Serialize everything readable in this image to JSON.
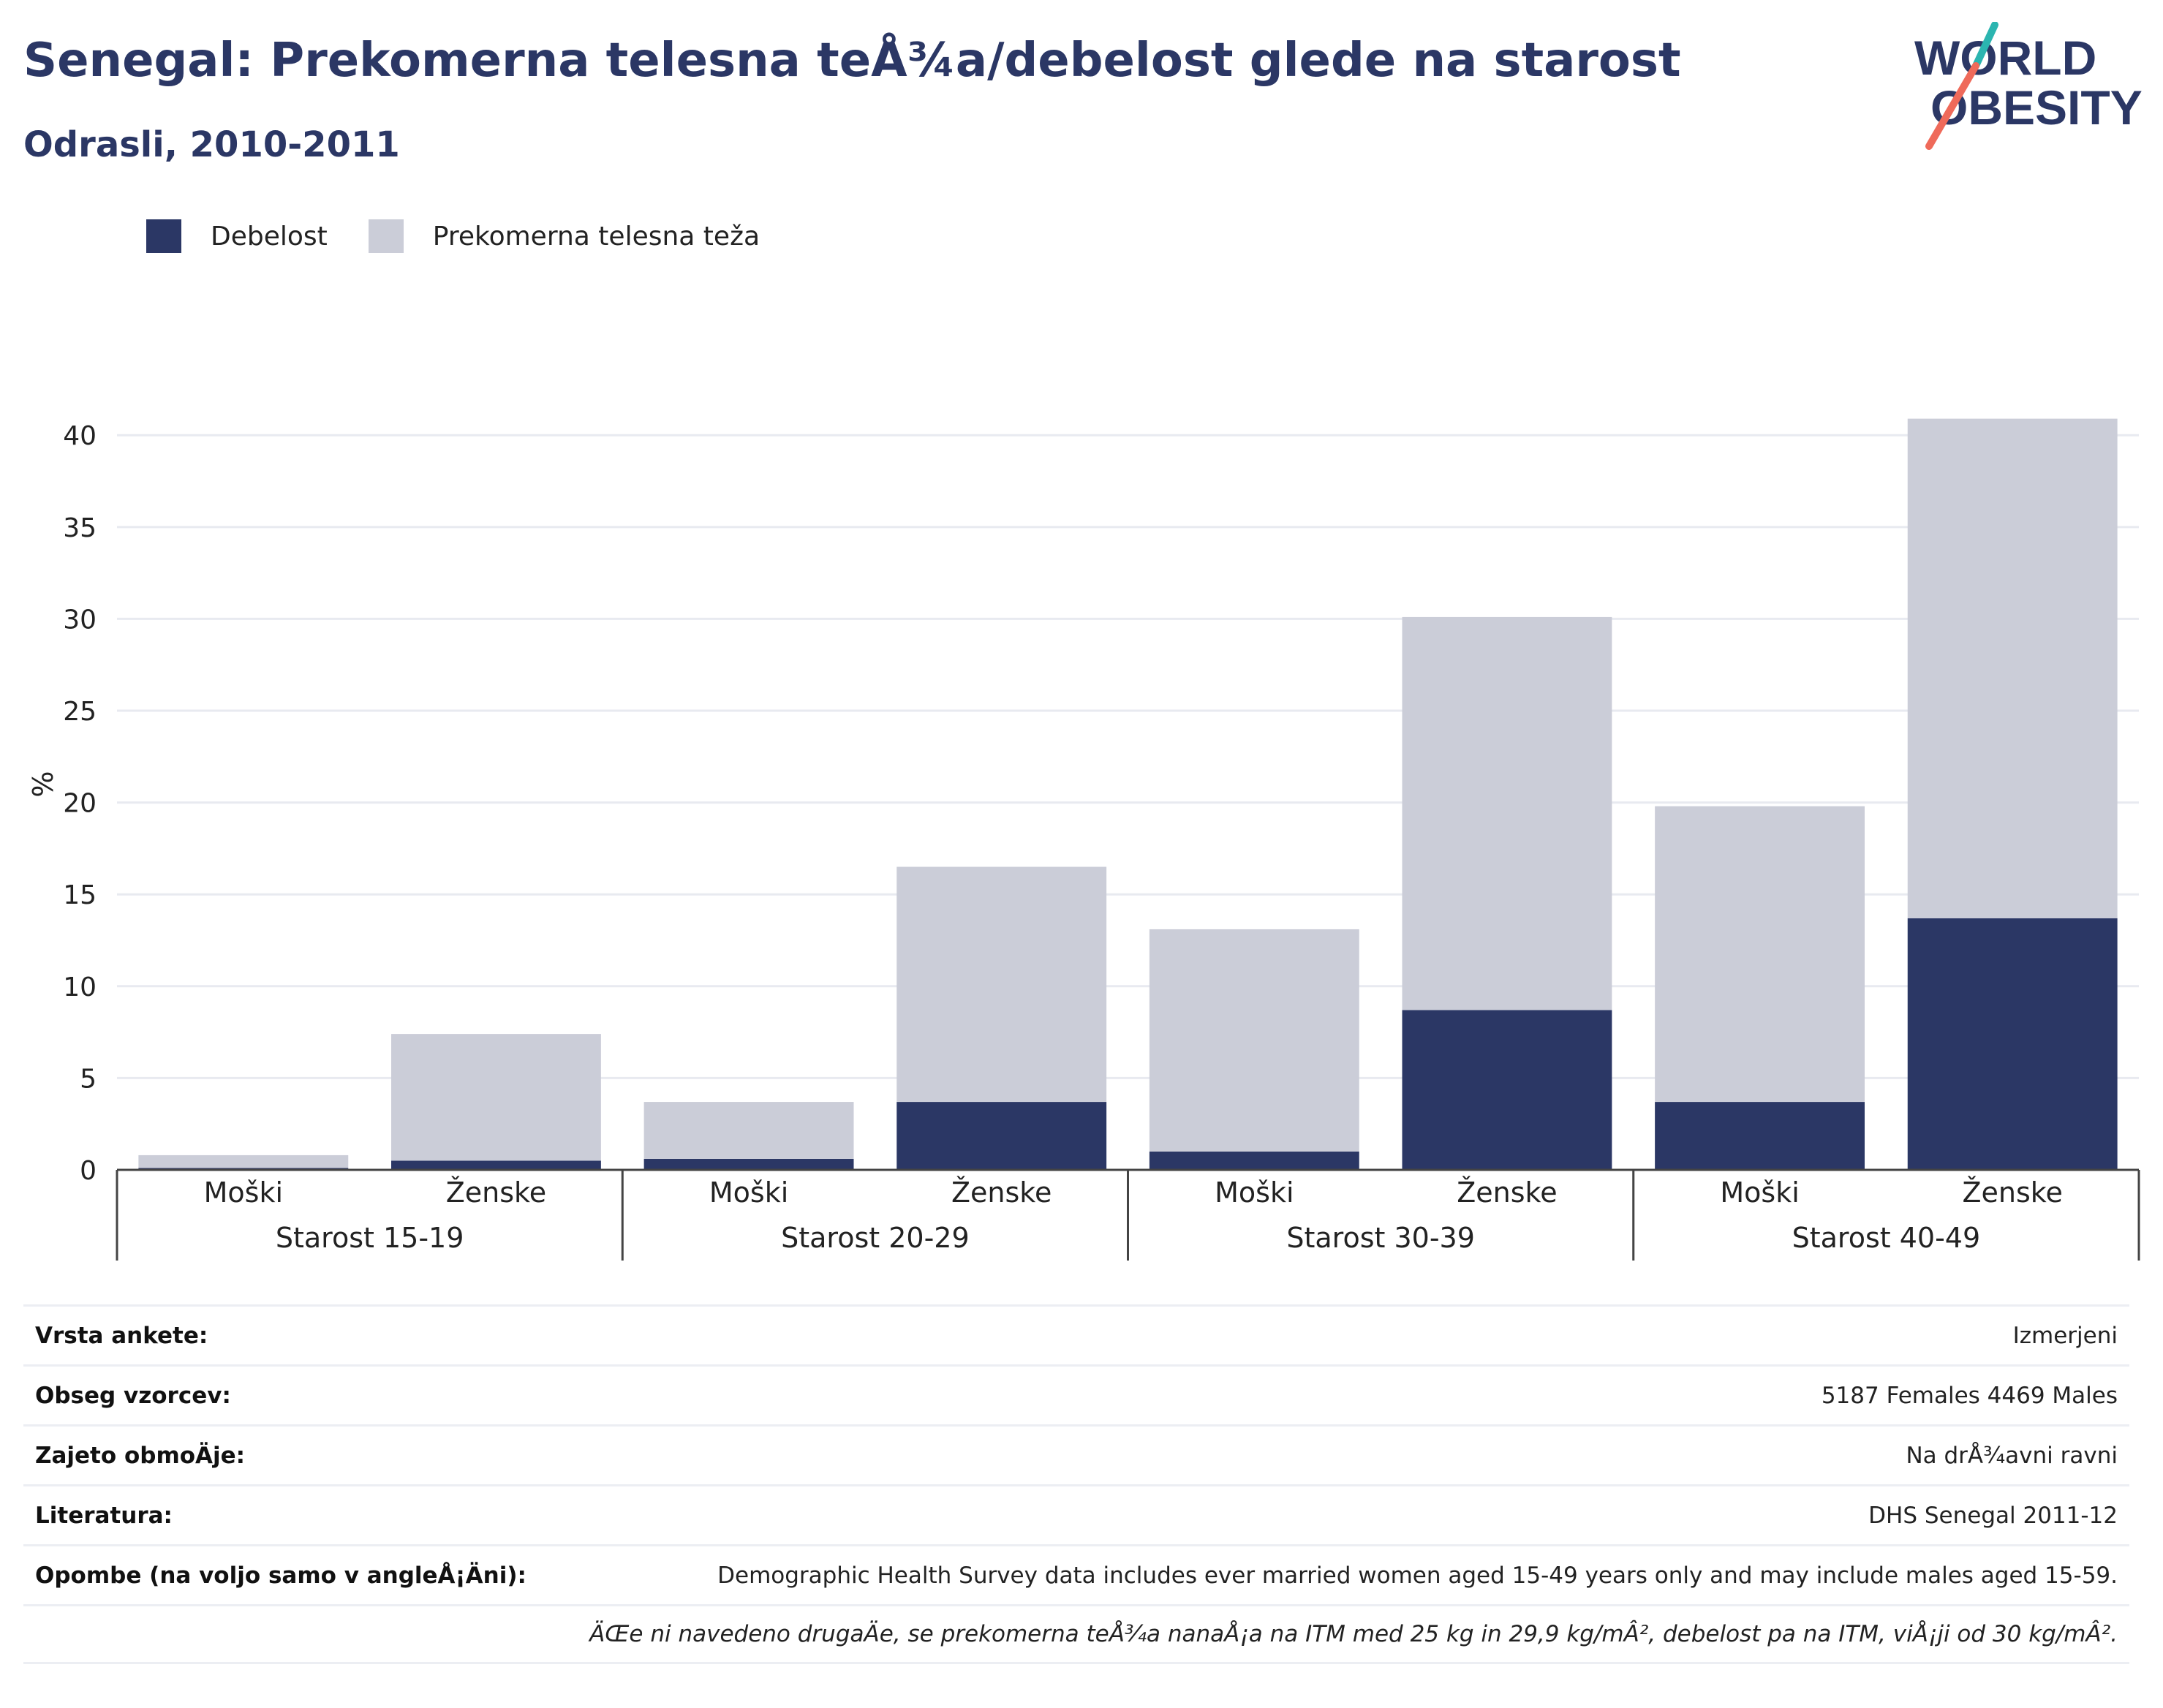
{
  "header": {
    "title": "Senegal: Prekomerna telesna teÅ¾a/debelost glede na starost",
    "subtitle": "Odrasli, 2010-2011"
  },
  "logo": {
    "line1": "WORLD",
    "line2": "OBESITY",
    "colors": {
      "text": "#2b3765",
      "teal": "#2bb5b0",
      "coral": "#ef6a5a"
    }
  },
  "legend": {
    "items": [
      {
        "label": "Debelost",
        "color": "#2b3765"
      },
      {
        "label": "Prekomerna telesna teža",
        "color": "#cbcdd8"
      }
    ]
  },
  "chart_data": {
    "type": "bar",
    "stacked": true,
    "ylabel": "%",
    "ylim": [
      0,
      42
    ],
    "yticks": [
      0,
      5,
      10,
      15,
      20,
      25,
      30,
      35,
      40
    ],
    "grid": true,
    "legend_position": "top-left",
    "groups": [
      "Starost 15-19",
      "Starost 20-29",
      "Starost 30-39",
      "Starost 40-49"
    ],
    "categories": [
      "Moški",
      "Ženske",
      "Moški",
      "Ženske",
      "Moški",
      "Ženske",
      "Moški",
      "Ženske"
    ],
    "series": [
      {
        "name": "Debelost",
        "color": "#2b3765",
        "values": [
          0.1,
          0.5,
          0.6,
          3.7,
          1.0,
          8.7,
          3.7,
          13.7
        ]
      },
      {
        "name": "Prekomerna telesna teža",
        "color": "#cbcdd8",
        "values": [
          0.7,
          6.9,
          3.1,
          12.8,
          12.1,
          21.4,
          16.1,
          27.2
        ]
      }
    ]
  },
  "meta": {
    "rows": [
      {
        "key": "Vrsta ankete:",
        "value": "Izmerjeni"
      },
      {
        "key": "Obseg vzorcev:",
        "value": "5187 Females 4469 Males"
      },
      {
        "key": "Zajeto obmoÄ\u001dje:",
        "value": "Na drÅ¾avni ravni"
      },
      {
        "key": "Literatura:",
        "value": "DHS Senegal 2011-12"
      },
      {
        "key": "Opombe (na voljo samo v angleÅ¡Ä\u001dni):",
        "value": "Demographic Health Survey data includes ever married women aged 15-49 years only and may include males aged 15-59."
      }
    ],
    "footnote": "ÄŒe ni navedeno drugaÄ\u001de, se prekomerna teÅ¾a nanaÅ¡a na ITM med 25 kg in 29,9 kg/mÂ², debelost pa na ITM, viÅ¡ji od 30 kg/mÂ²."
  }
}
